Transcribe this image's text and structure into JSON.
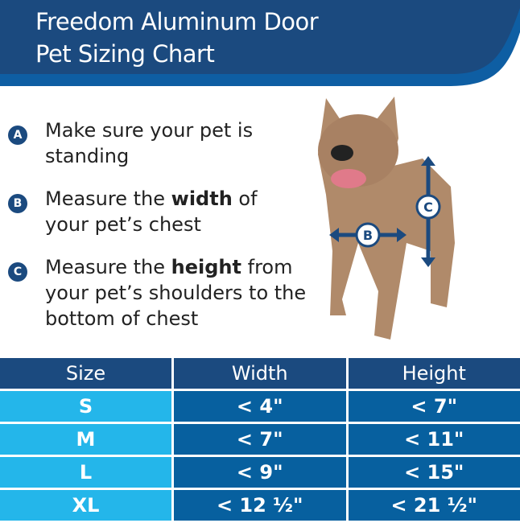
{
  "title_line1": "Freedom Aluminum Door",
  "title_line2": "Pet Sizing Chart",
  "steps": [
    {
      "badge": "A",
      "pre": "Make sure your pet is standing",
      "bold": "",
      "post": ""
    },
    {
      "badge": "B",
      "pre": "Measure the ",
      "bold": "width",
      "post": " of your pet’s chest"
    },
    {
      "badge": "C",
      "pre": "Measure the ",
      "bold": "height",
      "post": " from your pet’s shoulders to the bottom of chest"
    }
  ],
  "dog_labels": {
    "b": "B",
    "c": "C"
  },
  "table": {
    "headers": [
      "Size",
      "Width",
      "Height"
    ],
    "rows": [
      [
        "S",
        "< 4\"",
        "< 7\""
      ],
      [
        "M",
        "< 7\"",
        "< 11\""
      ],
      [
        "L",
        "< 9\"",
        "< 15\""
      ],
      [
        "XL",
        "< 12 ½\"",
        "< 21 ½\""
      ]
    ]
  },
  "colors": {
    "navy": "#1b4a7f",
    "blue": "#07609f",
    "cyan": "#24b6ea"
  }
}
